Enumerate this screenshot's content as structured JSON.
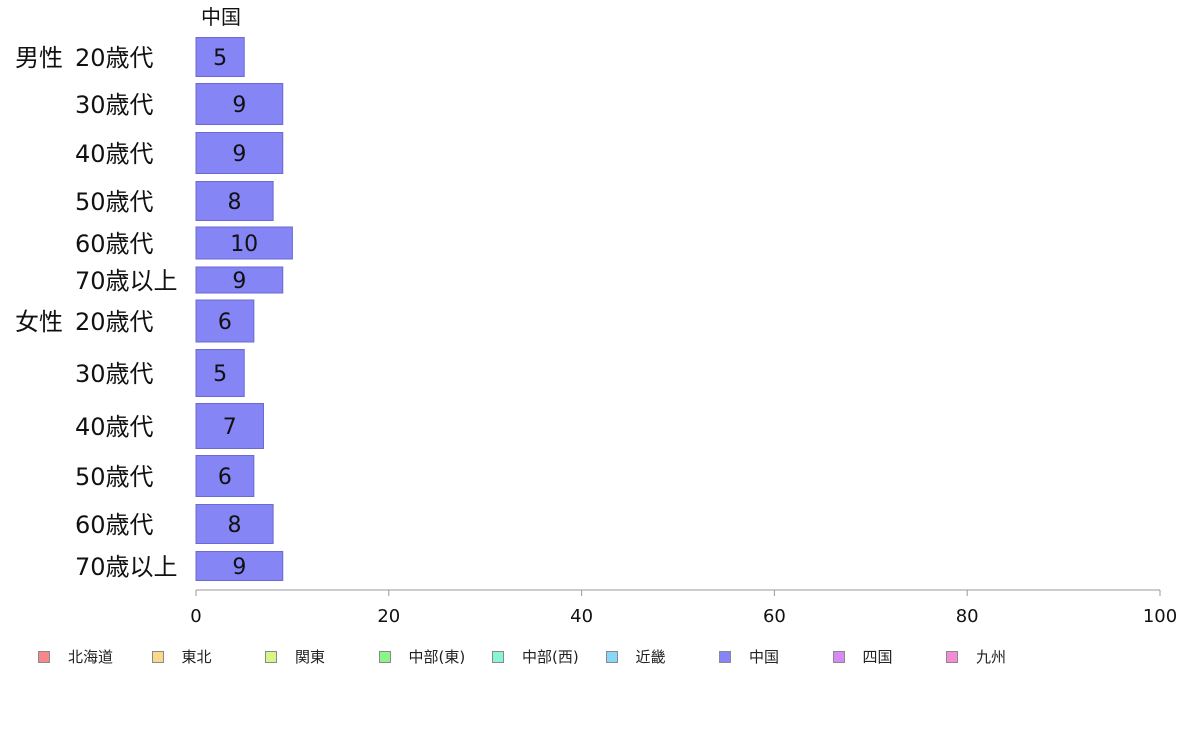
{
  "chart_data": {
    "type": "bar",
    "orientation": "horizontal",
    "title": "中国",
    "groups": [
      {
        "label": "男性",
        "categories": [
          "20歳代",
          "30歳代",
          "40歳代",
          "50歳代",
          "60歳代",
          "70歳以上"
        ],
        "values": [
          5,
          9,
          9,
          8,
          10,
          9
        ]
      },
      {
        "label": "女性",
        "categories": [
          "20歳代",
          "30歳代",
          "40歳代",
          "50歳代",
          "60歳代",
          "70歳以上"
        ],
        "values": [
          6,
          5,
          7,
          6,
          8,
          9
        ]
      }
    ],
    "series": [
      {
        "name": "中国",
        "color": "#8585f5"
      }
    ],
    "xlim": [
      0,
      100
    ],
    "xticks": [
      0,
      20,
      40,
      60,
      80,
      100
    ],
    "grid": false,
    "legend_position": "bottom"
  },
  "legend": [
    {
      "label": "北海道",
      "color": "#f58888"
    },
    {
      "label": "東北",
      "color": "#fbd98a"
    },
    {
      "label": "関東",
      "color": "#d9f58a"
    },
    {
      "label": "中部(東)",
      "color": "#8bf58a"
    },
    {
      "label": "中部(西)",
      "color": "#8af5d6"
    },
    {
      "label": "近畿",
      "color": "#8ad6f5"
    },
    {
      "label": "中国",
      "color": "#8585f5"
    },
    {
      "label": "四国",
      "color": "#d68af5"
    },
    {
      "label": "九州",
      "color": "#f58ad6"
    }
  ]
}
